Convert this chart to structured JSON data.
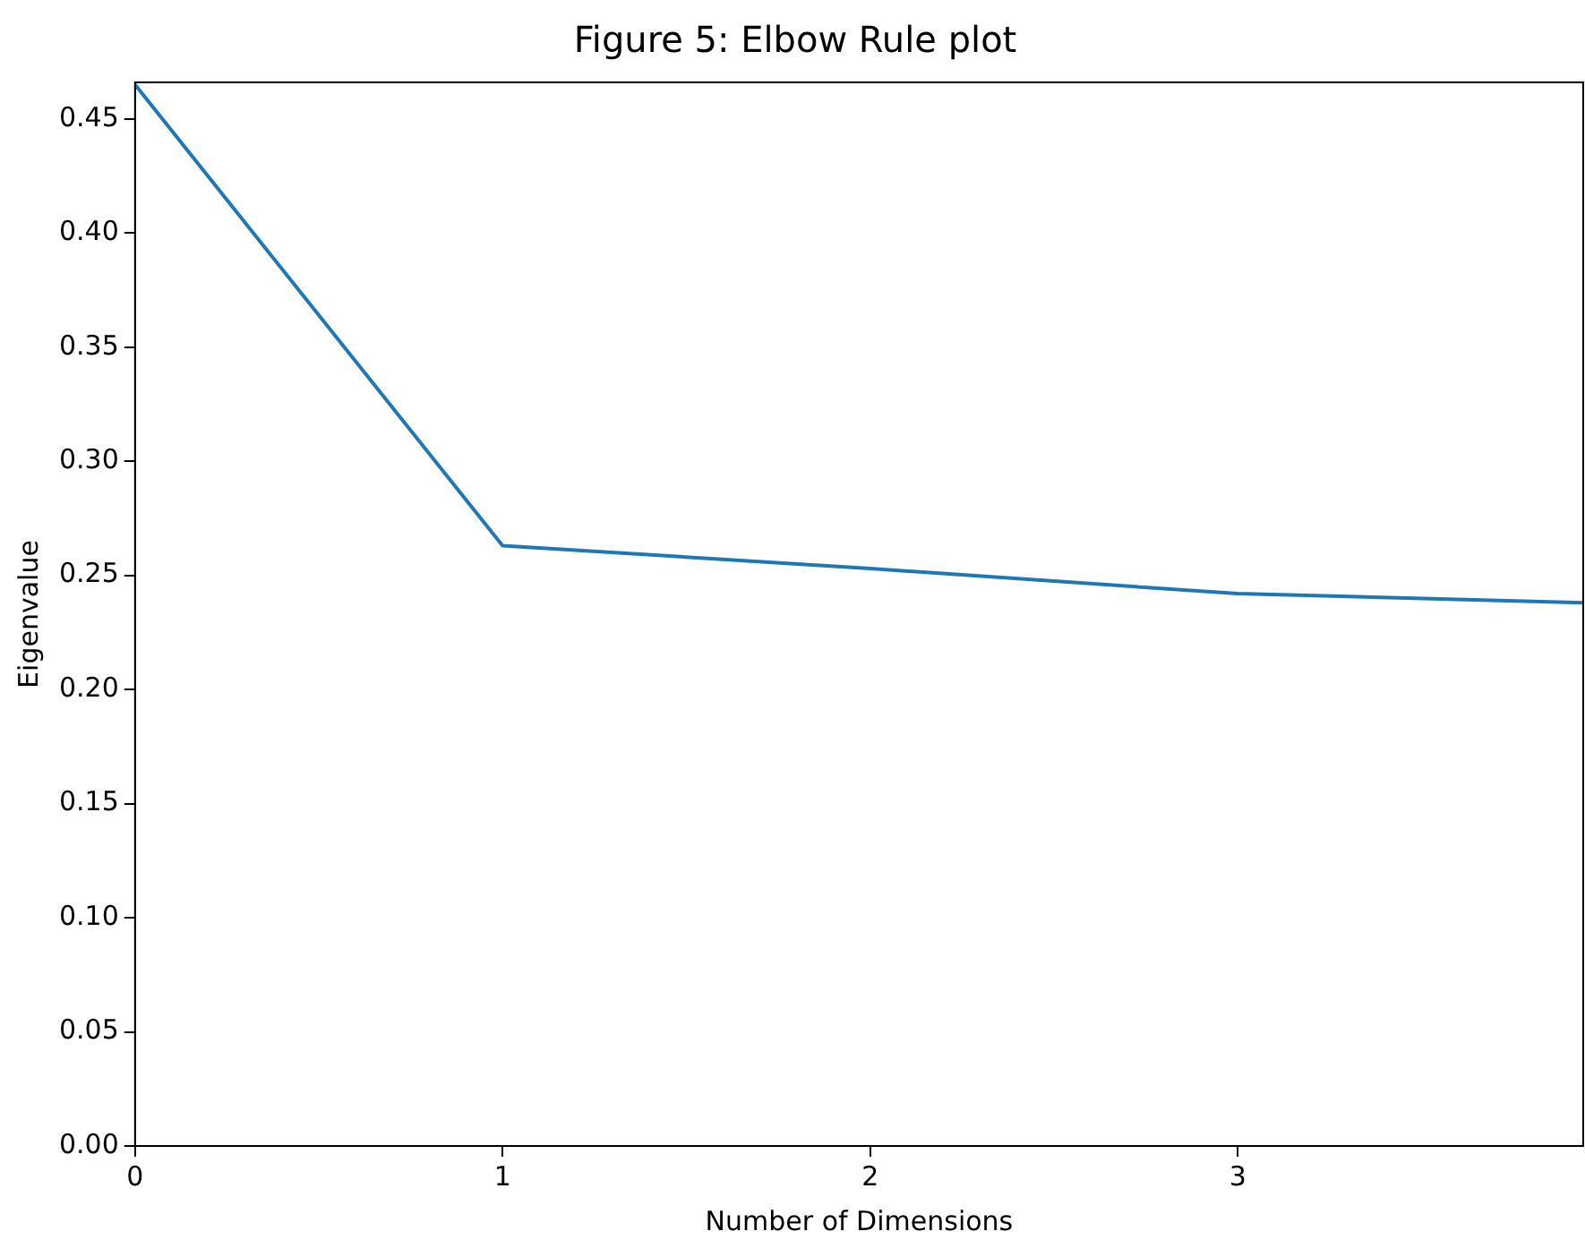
{
  "chart_data": {
    "type": "line",
    "title": "Figure 5: Elbow Rule plot",
    "xlabel": "Number of Dimensions",
    "ylabel": "Eigenvalue",
    "x": [
      0,
      1,
      2,
      3,
      3.94
    ],
    "series": [
      {
        "color": "#1f77b4",
        "values": [
          0.465,
          0.263,
          0.253,
          0.242,
          0.238
        ]
      }
    ],
    "xlim": [
      0,
      3.94
    ],
    "xticks": [
      0,
      1,
      2,
      3
    ],
    "ylim": [
      0,
      0.466
    ],
    "yticks": [
      {
        "value": 0,
        "label": "0.00"
      },
      {
        "value": 0.05,
        "label": "0.05"
      },
      {
        "value": 0.1,
        "label": "0.10"
      },
      {
        "value": 0.15,
        "label": "0.15"
      },
      {
        "value": 0.2,
        "label": "0.20"
      },
      {
        "value": 0.25,
        "label": "0.25"
      },
      {
        "value": 0.3,
        "label": "0.30"
      },
      {
        "value": 0.35,
        "label": "0.35"
      },
      {
        "value": 0.4,
        "label": "0.40"
      },
      {
        "value": 0.45,
        "label": "0.45"
      }
    ],
    "grid": false,
    "legend": false,
    "marker": "none",
    "line_style": "solid"
  }
}
